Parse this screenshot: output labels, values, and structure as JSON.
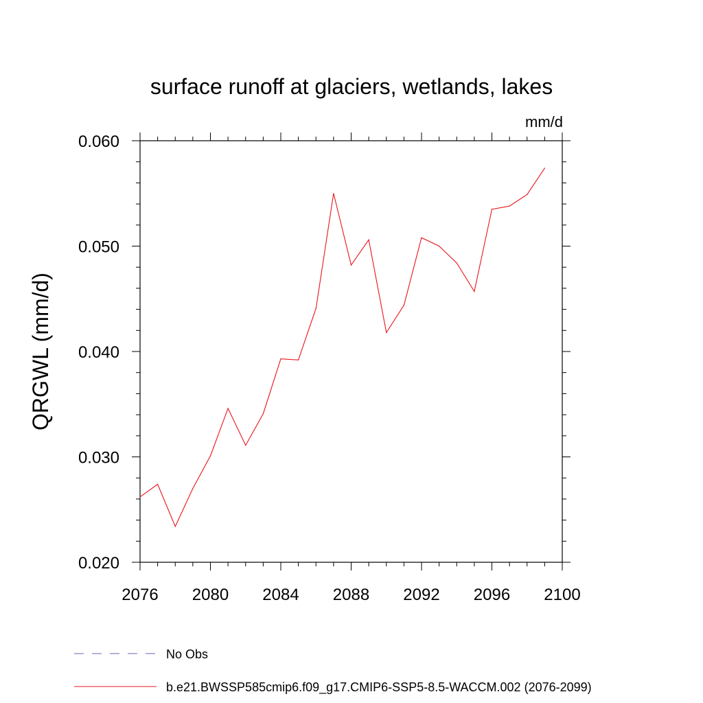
{
  "chart_data": {
    "type": "line",
    "title": "surface runoff at glaciers, wetlands, lakes",
    "units_label": "mm/d",
    "ylabel": "QRGWL  (mm/d)",
    "xlabel": "",
    "xlim": [
      2076,
      2100
    ],
    "ylim": [
      0.02,
      0.06
    ],
    "x_ticks": [
      2076,
      2080,
      2084,
      2088,
      2092,
      2096,
      2100
    ],
    "x_tick_labels": [
      "2076",
      "2080",
      "2084",
      "2088",
      "2092",
      "2096",
      "2100"
    ],
    "y_ticks": [
      0.02,
      0.03,
      0.04,
      0.05,
      0.06
    ],
    "y_tick_labels": [
      "0.020",
      "0.030",
      "0.040",
      "0.050",
      "0.060"
    ],
    "grid": false,
    "legend_position": "bottom",
    "legend": [
      {
        "label": "No Obs",
        "color": "#6f5fb0",
        "style": "dashed"
      },
      {
        "label": "b.e21.BWSSP585cmip6.f09_g17.CMIP6-SSP5-8.5-WACCM.002 (2076-2099)",
        "color": "#e8141b",
        "style": "solid"
      }
    ],
    "series": [
      {
        "name": "b.e21.BWSSP585cmip6.f09_g17.CMIP6-SSP5-8.5-WACCM.002 (2076-2099)",
        "color": "#e8141b",
        "x": [
          2076,
          2077,
          2078,
          2079,
          2080,
          2081,
          2082,
          2083,
          2084,
          2085,
          2086,
          2087,
          2088,
          2089,
          2090,
          2091,
          2092,
          2093,
          2094,
          2095,
          2096,
          2097,
          2098,
          2099
        ],
        "values": [
          0.0262,
          0.0274,
          0.0234,
          0.027,
          0.0301,
          0.0346,
          0.0311,
          0.0341,
          0.0393,
          0.0392,
          0.0441,
          0.055,
          0.0482,
          0.0506,
          0.0418,
          0.0444,
          0.0508,
          0.05,
          0.0484,
          0.0457,
          0.0535,
          0.0538,
          0.0549,
          0.0574
        ]
      }
    ]
  }
}
